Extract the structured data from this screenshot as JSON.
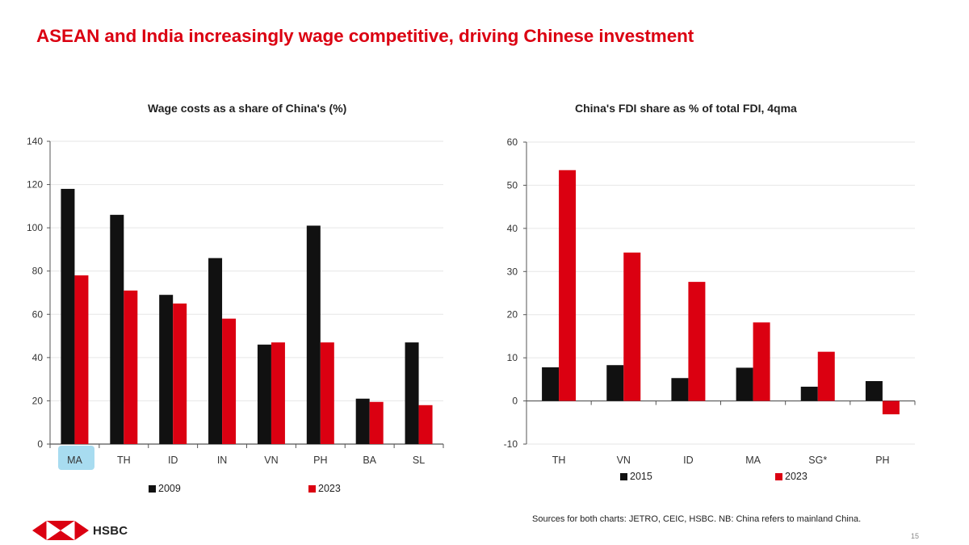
{
  "slide": {
    "title": "ASEAN and India increasingly wage competitive, driving Chinese investment",
    "sources": "Sources for both charts: JETRO, CEIC, HSBC. NB: China refers to mainland China.",
    "page_number": "15",
    "logo_text": "HSBC",
    "highlighted_category": "MA",
    "colors": {
      "accent": "#db0011",
      "series_dark": "#111111",
      "series_red": "#db0011",
      "highlight": "#a8dcf0"
    }
  },
  "chart_data": [
    {
      "type": "bar",
      "title": "Wage costs as a share of China's (%)",
      "xlabel": "",
      "ylabel": "",
      "ylim": [
        0,
        140
      ],
      "yticks": [
        0,
        20,
        40,
        60,
        80,
        100,
        120,
        140
      ],
      "grid": true,
      "legend_position": "bottom",
      "categories": [
        "MA",
        "TH",
        "ID",
        "IN",
        "VN",
        "PH",
        "BA",
        "SL"
      ],
      "series": [
        {
          "name": "2009",
          "color": "#111111",
          "values": [
            118,
            106,
            69,
            86,
            46,
            101,
            21,
            47
          ]
        },
        {
          "name": "2023",
          "color": "#db0011",
          "values": [
            78,
            71,
            65,
            58,
            47,
            47,
            19.5,
            18
          ]
        }
      ]
    },
    {
      "type": "bar",
      "title": "China's FDI share as % of total FDI, 4qma",
      "xlabel": "",
      "ylabel": "",
      "ylim": [
        -10,
        60
      ],
      "yticks": [
        -10,
        0,
        10,
        20,
        30,
        40,
        50,
        60
      ],
      "grid": true,
      "legend_position": "bottom",
      "categories": [
        "TH",
        "VN",
        "ID",
        "MA",
        "SG*",
        "PH"
      ],
      "series": [
        {
          "name": "2015",
          "color": "#111111",
          "values": [
            7.8,
            8.3,
            5.3,
            7.7,
            3.3,
            4.6
          ]
        },
        {
          "name": "2023",
          "color": "#db0011",
          "values": [
            53.5,
            34.4,
            27.6,
            18.2,
            11.4,
            -3.1
          ]
        }
      ]
    }
  ]
}
